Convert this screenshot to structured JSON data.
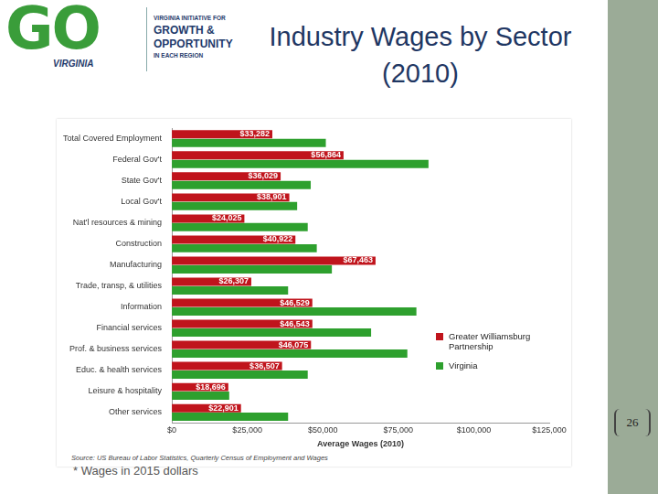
{
  "slide": {
    "logo": {
      "mark": "GO",
      "state": "VIRGINIA",
      "lines": [
        "VIRGINIA INITIATIVE FOR",
        "GROWTH &",
        "OPPORTUNITY",
        "IN EACH REGION"
      ]
    },
    "page_number": "26"
  },
  "chart_data": {
    "type": "bar",
    "orientation": "horizontal",
    "title": "Industry Wages by Sector (2010)",
    "x_label": "Average Wages (2010)",
    "annotations": [
      "Source: US Bureau of Labor Statistics, Quarterly Census of Employment and Wages",
      "* Wages in 2015 dollars"
    ],
    "categories": [
      "Total Covered Employment",
      "Federal Gov't",
      "State Gov't",
      "Local Gov't",
      "Nat'l resources & mining",
      "Construction",
      "Manufacturing",
      "Trade, transp, & utilities",
      "Information",
      "Financial services",
      "Prof. & business services",
      "Educ. & health services",
      "Leisure & hospitality",
      "Other services"
    ],
    "series": [
      {
        "name": "Greater Williamsburg Partnership",
        "color": "#c0141c",
        "values": [
          33282,
          56864,
          36029,
          38901,
          24025,
          40922,
          67463,
          26307,
          46529,
          46543,
          46075,
          36507,
          18696,
          22901
        ],
        "value_labels": [
          "$33,282",
          "$56,864",
          "$36,029",
          "$38,901",
          "$24,025",
          "$40,922",
          "$67,463",
          "$26,307",
          "$46,529",
          "$46,543",
          "$46,075",
          "$36,507",
          "$18,696",
          "$22,901"
        ]
      },
      {
        "name": "Virginia",
        "color": "#2ea02e",
        "values": [
          51000,
          85000,
          46000,
          41500,
          45000,
          48000,
          53000,
          38500,
          81000,
          66000,
          78000,
          45000,
          19000,
          38500
        ]
      }
    ],
    "xlim": [
      0,
      125000
    ],
    "xticks": [
      {
        "value": 0,
        "label": "$0"
      },
      {
        "value": 25000,
        "label": "$25,000"
      },
      {
        "value": 50000,
        "label": "$50,000"
      },
      {
        "value": 75000,
        "label": "$75,000"
      },
      {
        "value": 100000,
        "label": "$100,000"
      },
      {
        "value": 125000,
        "label": "$125,000"
      }
    ],
    "grid": false,
    "legend": "right",
    "data_labels": true
  }
}
